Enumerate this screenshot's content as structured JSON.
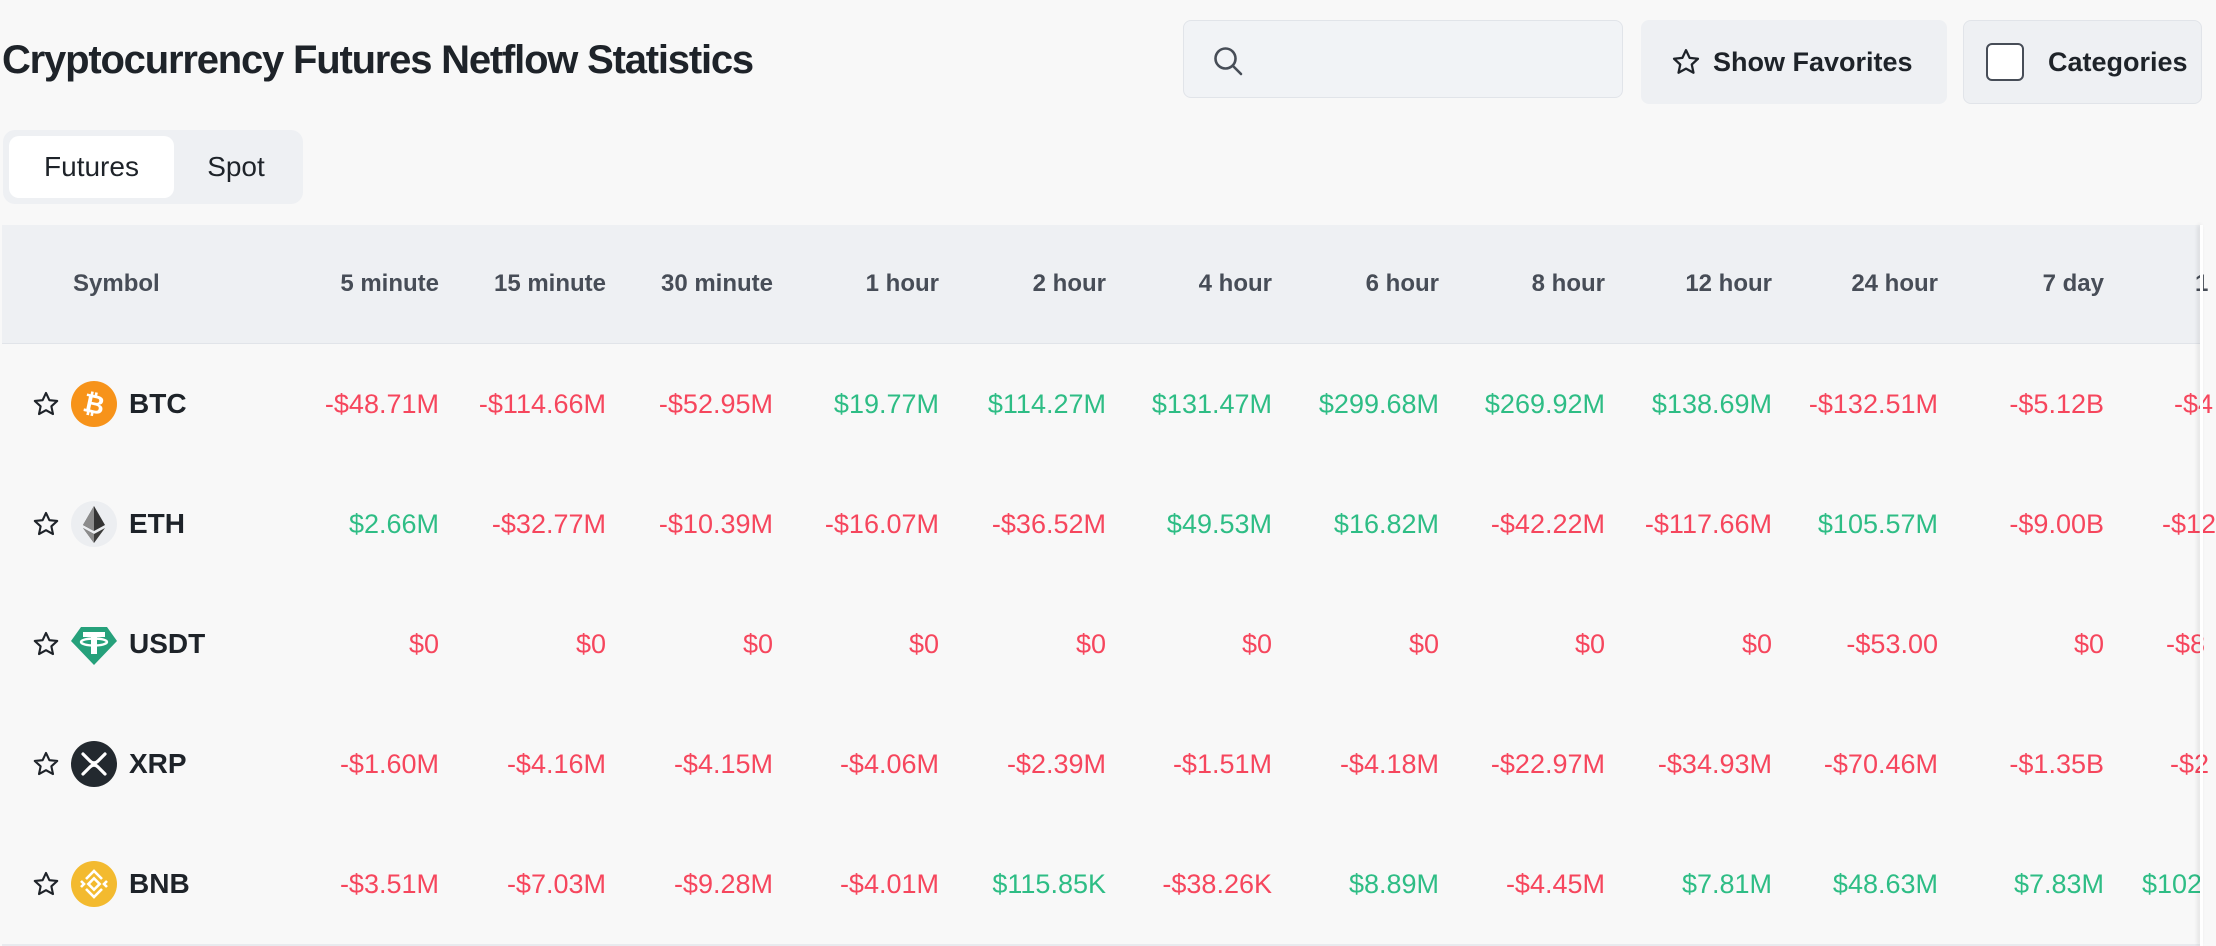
{
  "header": {
    "title": "Cryptocurrency Futures Netflow Statistics",
    "search_placeholder": "",
    "show_favorites_label": "Show Favorites",
    "categories_label": "Categories"
  },
  "tabs": [
    {
      "label": "Futures",
      "active": true
    },
    {
      "label": "Spot",
      "active": false
    }
  ],
  "table": {
    "columns": [
      "Symbol",
      "5 minute",
      "15 minute",
      "30 minute",
      "1 hour",
      "2 hour",
      "4 hour",
      "6 hour",
      "8 hour",
      "12 hour",
      "24 hour",
      "7 day",
      "1"
    ],
    "rows": [
      {
        "symbol": "BTC",
        "icon": "bitcoin-icon",
        "icon_color": "#f7931a",
        "values": [
          "-$48.71M",
          "-$114.66M",
          "-$52.95M",
          "$19.77M",
          "$114.27M",
          "$131.47M",
          "$299.68M",
          "$269.92M",
          "$138.69M",
          "-$132.51M",
          "-$5.12B",
          "-$4"
        ],
        "signs": [
          "neg",
          "neg",
          "neg",
          "pos",
          "pos",
          "pos",
          "pos",
          "pos",
          "pos",
          "neg",
          "neg",
          "neg"
        ]
      },
      {
        "symbol": "ETH",
        "icon": "ethereum-icon",
        "icon_color": "#3c3c3d",
        "values": [
          "$2.66M",
          "-$32.77M",
          "-$10.39M",
          "-$16.07M",
          "-$36.52M",
          "$49.53M",
          "$16.82M",
          "-$42.22M",
          "-$117.66M",
          "$105.57M",
          "-$9.00B",
          "-$12"
        ],
        "signs": [
          "pos",
          "neg",
          "neg",
          "neg",
          "neg",
          "pos",
          "pos",
          "neg",
          "neg",
          "pos",
          "neg",
          "neg"
        ]
      },
      {
        "symbol": "USDT",
        "icon": "tether-icon",
        "icon_color": "#26a17b",
        "values": [
          "$0",
          "$0",
          "$0",
          "$0",
          "$0",
          "$0",
          "$0",
          "$0",
          "$0",
          "-$53.00",
          "$0",
          "-$8"
        ],
        "signs": [
          "neg",
          "neg",
          "neg",
          "neg",
          "neg",
          "neg",
          "neg",
          "neg",
          "neg",
          "neg",
          "neg",
          "neg"
        ]
      },
      {
        "symbol": "XRP",
        "icon": "xrp-icon",
        "icon_color": "#23292f",
        "values": [
          "-$1.60M",
          "-$4.16M",
          "-$4.15M",
          "-$4.06M",
          "-$2.39M",
          "-$1.51M",
          "-$4.18M",
          "-$22.97M",
          "-$34.93M",
          "-$70.46M",
          "-$1.35B",
          "-$2"
        ],
        "signs": [
          "neg",
          "neg",
          "neg",
          "neg",
          "neg",
          "neg",
          "neg",
          "neg",
          "neg",
          "neg",
          "neg",
          "neg"
        ]
      },
      {
        "symbol": "BNB",
        "icon": "bnb-icon",
        "icon_color": "#f3ba2f",
        "values": [
          "-$3.51M",
          "-$7.03M",
          "-$9.28M",
          "-$4.01M",
          "$115.85K",
          "-$38.26K",
          "$8.89M",
          "-$4.45M",
          "$7.81M",
          "$48.63M",
          "$7.83M",
          "$102"
        ],
        "signs": [
          "neg",
          "neg",
          "neg",
          "neg",
          "pos",
          "neg",
          "pos",
          "neg",
          "pos",
          "pos",
          "pos",
          "pos"
        ]
      }
    ]
  },
  "colors": {
    "negative": "#f6465d",
    "positive": "#2ebd85"
  }
}
